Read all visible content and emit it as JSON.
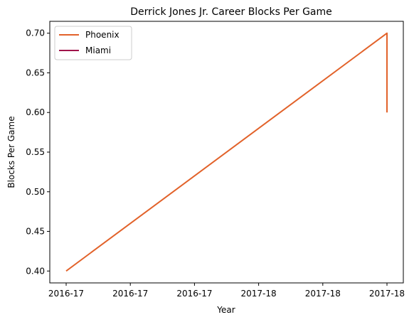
{
  "chart_data": {
    "type": "line",
    "title": "Derrick Jones Jr. Career Blocks Per Game",
    "xlabel": "Year",
    "ylabel": "Blocks Per Game",
    "x_tick_labels": [
      "2016-17",
      "2016-17",
      "2016-17",
      "2017-18",
      "2017-18",
      "2017-18"
    ],
    "xlim": [
      0,
      1
    ],
    "ylim": [
      0.385,
      0.715
    ],
    "y_ticks": [
      0.4,
      0.45,
      0.5,
      0.55,
      0.6,
      0.65,
      0.7
    ],
    "grid": false,
    "legend_position": "top-left",
    "series": [
      {
        "name": "Phoenix",
        "color": "#e2622a",
        "points": [
          {
            "x": 0,
            "y": 0.4
          },
          {
            "x": 1,
            "y": 0.7
          },
          {
            "x": 1,
            "y": 0.6
          }
        ]
      },
      {
        "name": "Miami",
        "color": "#a0144a",
        "points": []
      }
    ]
  }
}
